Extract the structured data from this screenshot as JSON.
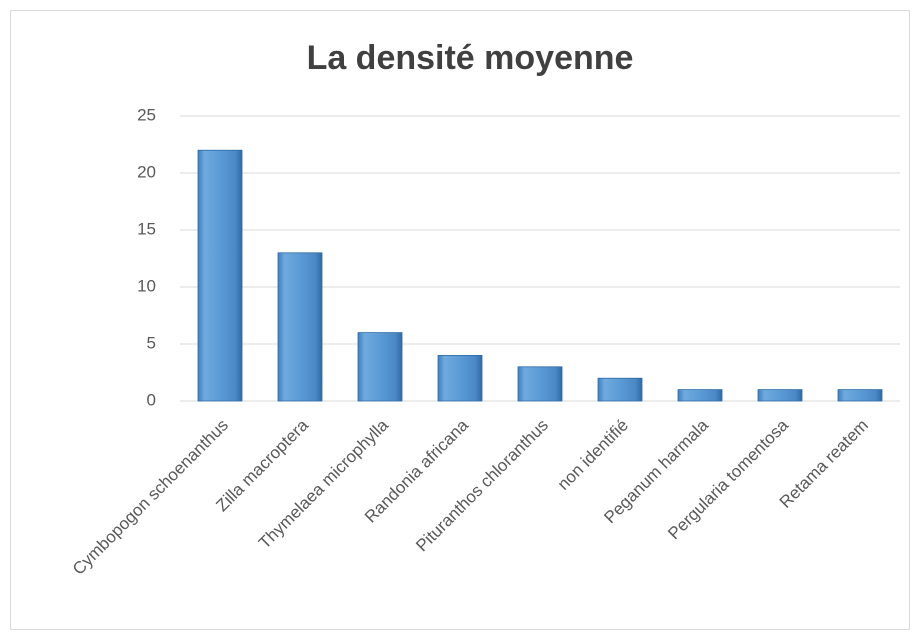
{
  "chart_data": {
    "type": "bar",
    "title": "La densité moyenne",
    "categories": [
      "Cymbopogon schoenanthus",
      "Zilla macroptera",
      "Thymelaea microphylla",
      "Randonia africana",
      "Pituranthos chloranthus",
      "non identifié",
      "Peganum harmala",
      "Pergularia tomentosa",
      "Retama reatem"
    ],
    "values": [
      22,
      13,
      6,
      4,
      3,
      2,
      1,
      1,
      1
    ],
    "color": "#5b9bd5",
    "ylim": [
      0,
      25
    ],
    "yticks": [
      0,
      5,
      10,
      15,
      20,
      25
    ],
    "grid": true
  }
}
